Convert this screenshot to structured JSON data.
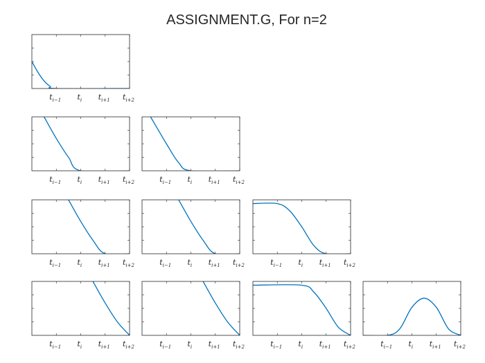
{
  "title": "ASSIGNMENT.G, For n=2",
  "colors": {
    "curve": "#0072BD",
    "axes": "#262626",
    "background": "#ffffff"
  },
  "chart_data": {
    "type": "line",
    "layout": "4x4 lower-triangular grid of subplots",
    "x": [
      0,
      1,
      2,
      3,
      4
    ],
    "xtick_labels": [
      {
        "base": "t",
        "sub": "i−1"
      },
      {
        "base": "t",
        "sub": "i"
      },
      {
        "base": "t",
        "sub": "i+1"
      },
      {
        "base": "t",
        "sub": "i+2"
      }
    ],
    "xtick_positions": [
      1,
      2,
      3,
      4
    ],
    "xlim": [
      0,
      4
    ],
    "ylim": [
      0,
      1
    ],
    "yticks_labeled": false,
    "grid": false,
    "panels": [
      {
        "row": 0,
        "col": 0,
        "x": [
          0,
          0.25,
          0.5,
          0.75,
          1,
          4
        ],
        "y": [
          0.5,
          0.3,
          0.14,
          0.04,
          0,
          0
        ]
      },
      {
        "row": 1,
        "col": 0,
        "x": [
          0.5,
          1,
          1.5,
          2,
          4
        ],
        "y": [
          1,
          0.6,
          0.25,
          0,
          0
        ]
      },
      {
        "row": 1,
        "col": 1,
        "x": [
          0.35,
          1,
          1.5,
          2,
          4
        ],
        "y": [
          1,
          0.5,
          0.15,
          0,
          0
        ]
      },
      {
        "row": 2,
        "col": 0,
        "x": [
          1.5,
          2,
          2.5,
          3,
          4
        ],
        "y": [
          1,
          0.6,
          0.25,
          0,
          0
        ]
      },
      {
        "row": 2,
        "col": 1,
        "x": [
          1.5,
          2,
          2.5,
          3,
          4
        ],
        "y": [
          1,
          0.6,
          0.25,
          0,
          0
        ]
      },
      {
        "row": 2,
        "col": 2,
        "x": [
          0,
          1,
          1.5,
          2,
          2.5,
          3,
          4
        ],
        "y": [
          0.93,
          0.93,
          0.8,
          0.5,
          0.15,
          0,
          0
        ]
      },
      {
        "row": 3,
        "col": 0,
        "x": [
          2.5,
          3,
          3.5,
          4
        ],
        "y": [
          1,
          0.6,
          0.25,
          0
        ]
      },
      {
        "row": 3,
        "col": 1,
        "x": [
          2.5,
          3,
          3.5,
          4
        ],
        "y": [
          1,
          0.6,
          0.25,
          0
        ]
      },
      {
        "row": 3,
        "col": 2,
        "x": [
          0,
          2,
          2.5,
          3,
          3.5,
          4
        ],
        "y": [
          0.93,
          0.93,
          0.8,
          0.5,
          0.15,
          0
        ]
      },
      {
        "row": 3,
        "col": 3,
        "x": [
          0,
          1,
          1.5,
          2,
          2.5,
          3,
          3.5,
          4
        ],
        "y": [
          0,
          0,
          0.12,
          0.52,
          0.69,
          0.52,
          0.12,
          0
        ]
      }
    ]
  }
}
